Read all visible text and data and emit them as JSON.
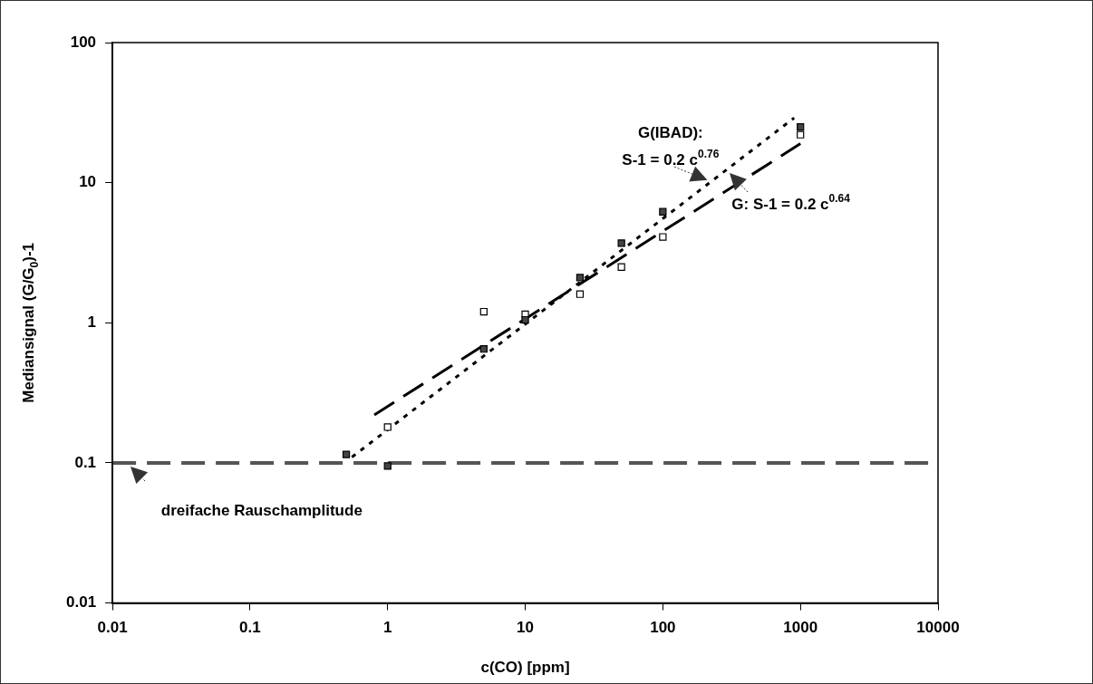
{
  "chart_data": {
    "type": "scatter",
    "xlabel": "c(CO) [ppm]",
    "ylabel": "Mediansignal (G/G$_{0}$)-1",
    "log": "xy",
    "xlim": [
      0.01,
      10000
    ],
    "xticks": [
      0.01,
      0.1,
      1,
      10,
      100,
      1000,
      10000
    ],
    "ylim": [
      0.01,
      100
    ],
    "yticks": [
      0.01,
      0.1,
      1,
      10,
      100
    ],
    "grid": false,
    "legend": false,
    "marker": "square",
    "series": [
      {
        "color": "#444444",
        "x": [
          0.5,
          1,
          5,
          10,
          25,
          50,
          100,
          1000
        ],
        "values": [
          0.115,
          0.095,
          0.65,
          1.05,
          2.1,
          3.7,
          6.2,
          25
        ]
      },
      {
        "color": "#ffffff",
        "x": [
          1,
          5,
          10,
          25,
          50,
          100,
          1000
        ],
        "values": [
          0.18,
          1.2,
          1.15,
          1.6,
          2.5,
          4.1,
          22
        ]
      },
      {
        "type": "line",
        "color": "#000000",
        "line_style": "dotted",
        "marker": "none",
        "x": [
          0.55,
          900
        ],
        "values": [
          0.11,
          29
        ]
      },
      {
        "type": "line",
        "color": "#000000",
        "line_style": "dashed",
        "marker": "none",
        "x": [
          0.8,
          1000
        ],
        "values": [
          0.22,
          19
        ]
      }
    ],
    "ref_lines": [
      {
        "axis": "y",
        "value": 0.1,
        "label": "dreifache Rauschamplitude",
        "color": "#555555",
        "line_style": "dashed"
      }
    ],
    "annotations": [
      "G(IBAD):\nS-1 = 0.2 c$^{0.76}$",
      "G: S-1 = 0.2 c$^{0.64}$"
    ]
  }
}
